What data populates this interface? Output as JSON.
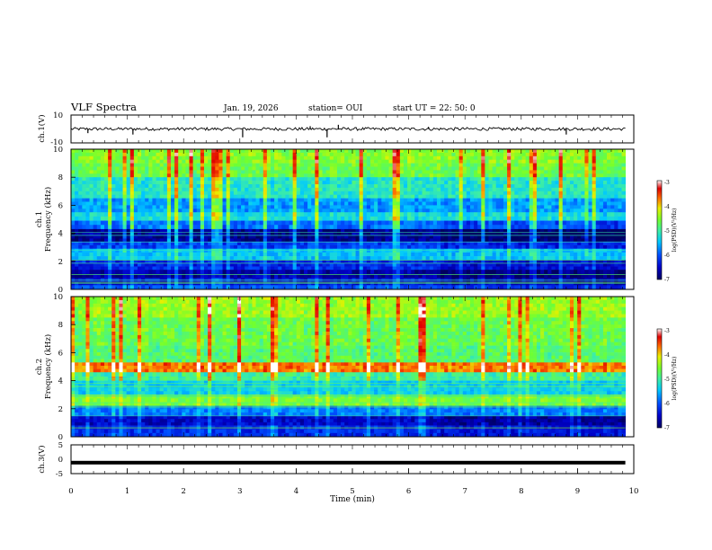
{
  "header": {
    "title": "VLF Spectra",
    "date": "Jan. 19, 2026",
    "station": "station= OUI",
    "start_ut": "start UT =  22: 50: 0"
  },
  "colors": {
    "background": "#ffffff",
    "axis": "#000000",
    "colormap": [
      "#000060",
      "#0000c8",
      "#0050ff",
      "#00c8ff",
      "#40f0a0",
      "#70ff30",
      "#e8f000",
      "#ff7000",
      "#e00000",
      "#ffffff"
    ]
  },
  "chart_data": [
    {
      "type": "line",
      "name": "ch1-waveform",
      "ylabel": "ch.1(V)",
      "ylim": [
        -10,
        10
      ],
      "yticks": [
        "10",
        "-10"
      ],
      "baseline": 0,
      "spikes": [
        {
          "t": 0.3,
          "v": -3
        },
        {
          "t": 1.1,
          "v": -4
        },
        {
          "t": 3.05,
          "v": -6
        },
        {
          "t": 4.25,
          "v": 2
        },
        {
          "t": 4.55,
          "v": -6
        },
        {
          "t": 4.75,
          "v": 3
        },
        {
          "t": 6.35,
          "v": 1.5
        },
        {
          "t": 8.8,
          "v": -4
        }
      ]
    },
    {
      "type": "heatmap",
      "name": "ch1-spectrogram",
      "ylabel": "ch.1\nFrequency (kHz)",
      "ylabel_line1": "ch.1",
      "ylabel_line2": "Frequency (kHz)",
      "ylim": [
        0,
        10
      ],
      "yticks": [
        "0",
        "2",
        "4",
        "6",
        "8",
        "10"
      ],
      "colorbar": {
        "label": "log(PSD)(V²/Hz)",
        "range": [
          -7,
          -3
        ],
        "ticks": [
          "-3",
          "-4",
          "-5",
          "-6",
          "-7"
        ]
      },
      "bands": [
        {
          "f": [
            9.0,
            10.0
          ],
          "level": 0.62
        },
        {
          "f": [
            8.0,
            9.0
          ],
          "level": 0.58
        },
        {
          "f": [
            6.5,
            8.0
          ],
          "level": 0.45
        },
        {
          "f": [
            5.5,
            6.5
          ],
          "level": 0.33
        },
        {
          "f": [
            4.9,
            5.5
          ],
          "level": 0.42
        },
        {
          "f": [
            4.3,
            4.9
          ],
          "level": 0.28
        },
        {
          "f": [
            3.4,
            4.3
          ],
          "level": 0.05
        },
        {
          "f": [
            2.9,
            3.4
          ],
          "level": 0.22
        },
        {
          "f": [
            2.1,
            2.9
          ],
          "level": 0.38
        },
        {
          "f": [
            1.4,
            2.1
          ],
          "level": 0.18
        },
        {
          "f": [
            0.8,
            1.4
          ],
          "level": 0.08
        },
        {
          "f": [
            0.3,
            0.8
          ],
          "level": 0.15
        },
        {
          "f": [
            0.0,
            0.3
          ],
          "level": 0.25
        }
      ]
    },
    {
      "type": "heatmap",
      "name": "ch2-spectrogram",
      "ylabel": "ch.2\nFrequency (kHz)",
      "ylabel_line1": "ch.2",
      "ylabel_line2": "Frequency (kHz)",
      "ylim": [
        0,
        10
      ],
      "yticks": [
        "0",
        "2",
        "4",
        "6",
        "8",
        "10"
      ],
      "colorbar": {
        "label": "log(PSD)(V²/Hz)",
        "range": [
          -7,
          -3
        ],
        "ticks": [
          "-3",
          "-4",
          "-5",
          "-6",
          "-7"
        ]
      },
      "bands": [
        {
          "f": [
            8.5,
            10.0
          ],
          "level": 0.64
        },
        {
          "f": [
            6.5,
            8.5
          ],
          "level": 0.58
        },
        {
          "f": [
            5.3,
            6.5
          ],
          "level": 0.55
        },
        {
          "f": [
            4.6,
            5.3
          ],
          "level": 0.82
        },
        {
          "f": [
            4.0,
            4.6
          ],
          "level": 0.5
        },
        {
          "f": [
            3.0,
            4.0
          ],
          "level": 0.4
        },
        {
          "f": [
            2.2,
            3.0
          ],
          "level": 0.6
        },
        {
          "f": [
            1.5,
            2.2
          ],
          "level": 0.3
        },
        {
          "f": [
            0.8,
            1.5
          ],
          "level": 0.12
        },
        {
          "f": [
            0.0,
            0.8
          ],
          "level": 0.2
        }
      ]
    },
    {
      "type": "line",
      "name": "ch3-waveform",
      "ylabel": "ch.3(V)",
      "ylim": [
        -5,
        5
      ],
      "yticks": [
        "5",
        "0",
        "-5"
      ],
      "baseline": -1.2
    }
  ],
  "xaxis": {
    "label": "Time (min)",
    "xlim": [
      0,
      10
    ],
    "ticks": [
      "0",
      "1",
      "2",
      "3",
      "4",
      "5",
      "6",
      "7",
      "8",
      "9",
      "10"
    ],
    "data_end": 9.85
  }
}
